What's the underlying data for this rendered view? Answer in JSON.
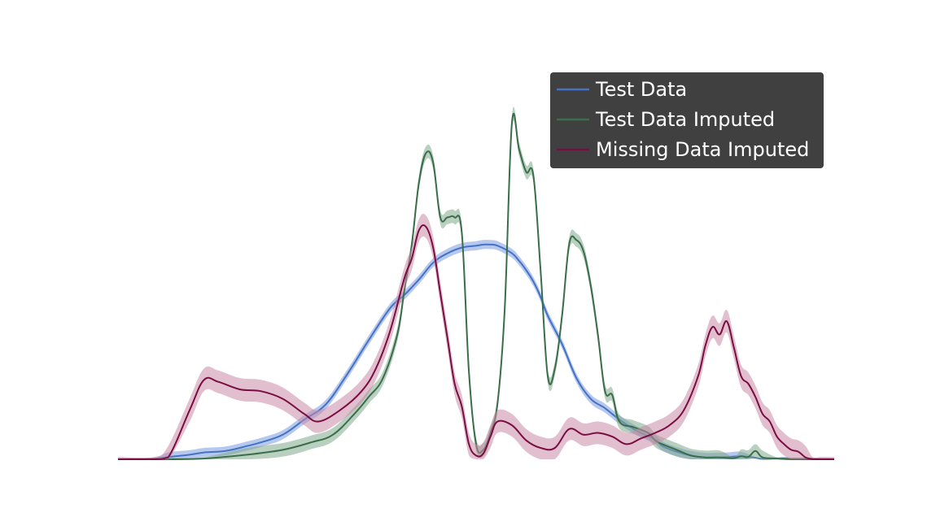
{
  "chart_data": {
    "type": "line",
    "title": "",
    "xlabel": "",
    "ylabel": "",
    "axes_visible": false,
    "grid": false,
    "legend_placement": "top-right",
    "xlim": [
      0,
      1
    ],
    "ylim": [
      0,
      1
    ],
    "series": [
      {
        "name": "Test Data",
        "color": "#4472c4",
        "band_color": "#7b9be0",
        "x": [
          0.0,
          0.05,
          0.07,
          0.1,
          0.12,
          0.15,
          0.18,
          0.2,
          0.23,
          0.26,
          0.29,
          0.32,
          0.35,
          0.38,
          0.4,
          0.42,
          0.44,
          0.46,
          0.48,
          0.5,
          0.51,
          0.52,
          0.53,
          0.55,
          0.56,
          0.57,
          0.58,
          0.59,
          0.6,
          0.62,
          0.64,
          0.66,
          0.68,
          0.7,
          0.72,
          0.73,
          0.75,
          0.76,
          0.78,
          0.8,
          0.82,
          0.85,
          0.87,
          0.89,
          0.9,
          0.92,
          0.93,
          0.94,
          0.96,
          0.98,
          1.0
        ],
        "y": [
          0.0,
          0.002,
          0.006,
          0.012,
          0.018,
          0.022,
          0.035,
          0.045,
          0.065,
          0.105,
          0.145,
          0.225,
          0.315,
          0.4,
          0.435,
          0.475,
          0.52,
          0.545,
          0.56,
          0.565,
          0.568,
          0.568,
          0.565,
          0.545,
          0.525,
          0.5,
          0.47,
          0.43,
          0.38,
          0.305,
          0.215,
          0.16,
          0.135,
          0.105,
          0.08,
          0.07,
          0.052,
          0.035,
          0.02,
          0.01,
          0.005,
          0.006,
          0.008,
          0.004,
          0.001,
          0.002,
          0.003,
          0.002,
          0.002,
          0.001,
          0.0
        ],
        "band": 0.012
      },
      {
        "name": "Test Data Imputed",
        "color": "#3a6e4a",
        "band_color": "#7fa88a",
        "x": [
          0.0,
          0.08,
          0.12,
          0.18,
          0.23,
          0.27,
          0.3,
          0.33,
          0.35,
          0.37,
          0.39,
          0.4,
          0.41,
          0.42,
          0.43,
          0.44,
          0.45,
          0.46,
          0.47,
          0.48,
          0.49,
          0.5,
          0.51,
          0.52,
          0.53,
          0.54,
          0.55,
          0.56,
          0.57,
          0.58,
          0.59,
          0.6,
          0.61,
          0.62,
          0.63,
          0.64,
          0.65,
          0.66,
          0.67,
          0.68,
          0.69,
          0.7,
          0.72,
          0.74,
          0.75,
          0.76,
          0.78,
          0.8,
          0.82,
          0.84,
          0.86,
          0.87,
          0.88,
          0.89,
          0.9,
          0.92,
          0.94,
          0.97,
          0.98,
          0.99,
          1.0
        ],
        "y": [
          0.0,
          0.0,
          0.002,
          0.012,
          0.025,
          0.045,
          0.065,
          0.12,
          0.165,
          0.215,
          0.33,
          0.45,
          0.565,
          0.73,
          0.81,
          0.785,
          0.64,
          0.64,
          0.64,
          0.6,
          0.23,
          0.04,
          0.025,
          0.07,
          0.15,
          0.4,
          0.89,
          0.82,
          0.76,
          0.75,
          0.5,
          0.22,
          0.24,
          0.38,
          0.57,
          0.58,
          0.55,
          0.46,
          0.33,
          0.18,
          0.17,
          0.1,
          0.085,
          0.07,
          0.05,
          0.04,
          0.025,
          0.01,
          0.005,
          0.005,
          0.003,
          0.008,
          0.006,
          0.022,
          0.005,
          0.002,
          0.0,
          0.0,
          0.0,
          0.0,
          0.0
        ],
        "band": 0.018
      },
      {
        "name": "Missing Data Imputed",
        "color": "#7a0e42",
        "band_color": "#c98aa6",
        "x": [
          0.0,
          0.05,
          0.07,
          0.1,
          0.12,
          0.14,
          0.17,
          0.2,
          0.23,
          0.26,
          0.28,
          0.31,
          0.34,
          0.36,
          0.38,
          0.4,
          0.41,
          0.42,
          0.43,
          0.44,
          0.45,
          0.46,
          0.47,
          0.48,
          0.49,
          0.5,
          0.51,
          0.52,
          0.53,
          0.55,
          0.57,
          0.59,
          0.61,
          0.63,
          0.65,
          0.67,
          0.69,
          0.71,
          0.73,
          0.75,
          0.77,
          0.79,
          0.81,
          0.82,
          0.83,
          0.84,
          0.85,
          0.86,
          0.87,
          0.88,
          0.89,
          0.9,
          0.91,
          0.92,
          0.93,
          0.94,
          0.95,
          0.96,
          0.97,
          0.98,
          0.99,
          1.0
        ],
        "y": [
          0.0,
          0.0,
          0.005,
          0.13,
          0.21,
          0.205,
          0.185,
          0.18,
          0.16,
          0.12,
          0.1,
          0.13,
          0.18,
          0.24,
          0.34,
          0.48,
          0.53,
          0.605,
          0.615,
          0.56,
          0.44,
          0.32,
          0.2,
          0.14,
          0.04,
          0.01,
          0.015,
          0.06,
          0.1,
          0.09,
          0.05,
          0.03,
          0.03,
          0.08,
          0.065,
          0.07,
          0.06,
          0.04,
          0.055,
          0.07,
          0.09,
          0.13,
          0.22,
          0.3,
          0.35,
          0.33,
          0.365,
          0.295,
          0.22,
          0.2,
          0.165,
          0.12,
          0.1,
          0.06,
          0.04,
          0.025,
          0.02,
          0.005,
          0.0,
          0.0,
          0.0,
          0.0
        ],
        "band": 0.03
      }
    ]
  },
  "legend": {
    "background": "#404040",
    "items": [
      {
        "label": "Test Data",
        "color": "#4472c4"
      },
      {
        "label": "Test Data Imputed",
        "color": "#3a6e4a"
      },
      {
        "label": "Missing Data Imputed",
        "color": "#7a0e42"
      }
    ]
  }
}
